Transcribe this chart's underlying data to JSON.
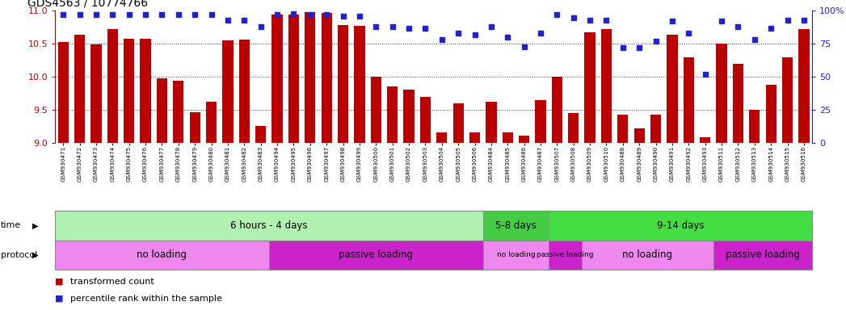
{
  "title": "GDS4563 / 10774766",
  "samples": [
    "GSM930471",
    "GSM930472",
    "GSM930473",
    "GSM930474",
    "GSM930475",
    "GSM930476",
    "GSM930477",
    "GSM930478",
    "GSM930479",
    "GSM930480",
    "GSM930481",
    "GSM930482",
    "GSM930483",
    "GSM930494",
    "GSM930495",
    "GSM930496",
    "GSM930497",
    "GSM930498",
    "GSM930499",
    "GSM930500",
    "GSM930501",
    "GSM930502",
    "GSM930503",
    "GSM930504",
    "GSM930505",
    "GSM930506",
    "GSM930484",
    "GSM930485",
    "GSM930486",
    "GSM930487",
    "GSM930507",
    "GSM930508",
    "GSM930509",
    "GSM930510",
    "GSM930488",
    "GSM930489",
    "GSM930490",
    "GSM930491",
    "GSM930492",
    "GSM930493",
    "GSM930511",
    "GSM930512",
    "GSM930513",
    "GSM930514",
    "GSM930515",
    "GSM930516"
  ],
  "bar_values": [
    10.53,
    10.64,
    10.49,
    10.72,
    10.58,
    10.58,
    9.98,
    9.94,
    9.46,
    9.62,
    10.55,
    10.57,
    9.25,
    10.94,
    10.95,
    10.98,
    10.97,
    10.78,
    10.77,
    10.0,
    9.85,
    9.8,
    9.69,
    9.15,
    9.6,
    9.15,
    9.62,
    9.15,
    9.1,
    9.65,
    10.0,
    9.45,
    10.68,
    10.72,
    9.42,
    9.22,
    9.42,
    10.64,
    10.3,
    9.08,
    10.5,
    10.2,
    9.5,
    9.88,
    10.3,
    10.72
  ],
  "percentile_values": [
    97,
    97,
    97,
    97,
    97,
    97,
    97,
    97,
    97,
    97,
    93,
    93,
    88,
    97,
    98,
    97,
    97,
    96,
    96,
    88,
    88,
    87,
    87,
    78,
    83,
    82,
    88,
    80,
    73,
    83,
    97,
    95,
    93,
    93,
    72,
    72,
    77,
    92,
    83,
    52,
    92,
    88,
    78,
    87,
    93,
    93
  ],
  "ylim": [
    9.0,
    11.0
  ],
  "yticks": [
    9.0,
    9.5,
    10.0,
    10.5,
    11.0
  ],
  "right_ytick_labels": [
    "0",
    "25",
    "50",
    "75",
    "100%"
  ],
  "bar_color": "#bb0000",
  "dot_color": "#2222cc",
  "time_groups": [
    {
      "label": "6 hours - 4 days",
      "start": 0,
      "end": 25,
      "color": "#b0f0b0"
    },
    {
      "label": "5-8 days",
      "start": 26,
      "end": 29,
      "color": "#44cc44"
    },
    {
      "label": "9-14 days",
      "start": 30,
      "end": 45,
      "color": "#44dd44"
    }
  ],
  "protocol_groups": [
    {
      "label": "no loading",
      "start": 0,
      "end": 12,
      "color": "#ee88ee"
    },
    {
      "label": "passive loading",
      "start": 13,
      "end": 25,
      "color": "#cc22cc"
    },
    {
      "label": "no loading",
      "start": 26,
      "end": 29,
      "color": "#ee88ee"
    },
    {
      "label": "passive loading",
      "start": 30,
      "end": 31,
      "color": "#cc22cc"
    },
    {
      "label": "no loading",
      "start": 32,
      "end": 39,
      "color": "#ee88ee"
    },
    {
      "label": "passive loading",
      "start": 40,
      "end": 45,
      "color": "#cc22cc"
    }
  ]
}
